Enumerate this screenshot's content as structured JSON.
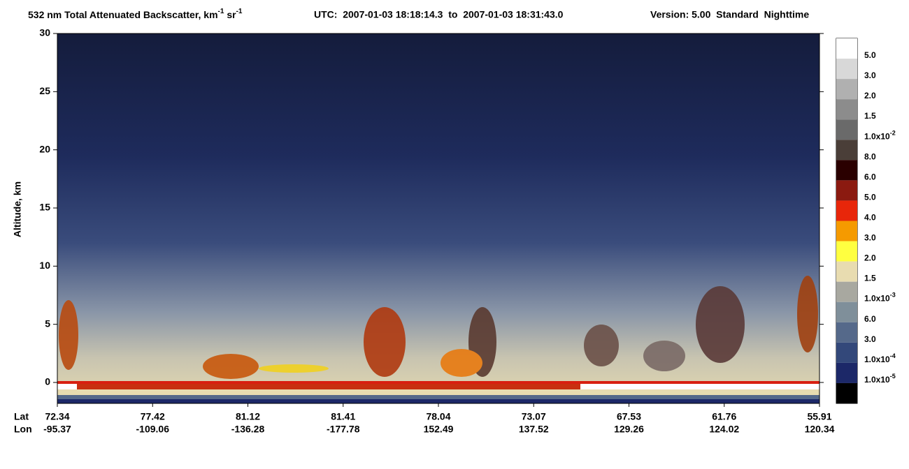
{
  "chart_data": {
    "type": "heatmap",
    "title": [
      "532 nm Total Attenuated Backscatter, km",
      "-1",
      " sr",
      "-1"
    ],
    "time_range": "UTC:  2007-01-03 18:18:14.3  to  2007-01-03 18:31:43.0",
    "version": "Version: 5.00  Standard  Nighttime",
    "ylabel": "Altitude, km",
    "ylim": [
      -1.8,
      30
    ],
    "yticks": [
      0,
      5,
      10,
      15,
      20,
      25,
      30
    ],
    "x_rows": [
      "Lat",
      "Lon"
    ],
    "lat": [
      72.34,
      77.42,
      81.12,
      81.41,
      78.04,
      73.07,
      67.53,
      61.76,
      55.91
    ],
    "lon": [
      -95.37,
      -109.06,
      -136.28,
      -177.78,
      152.49,
      137.52,
      129.26,
      124.02,
      120.34
    ],
    "colorbar": {
      "colors": [
        "#ffffff",
        "#d8d8d8",
        "#b0b0b0",
        "#8c8c8c",
        "#6a6a6a",
        "#4a3e38",
        "#2a0000",
        "#8b1a10",
        "#e8260a",
        "#f59a00",
        "#ffff40",
        "#e8dcb0",
        "#a8a8a0",
        "#7f8f9a",
        "#55698a",
        "#33487a",
        "#1c2868",
        "#000000"
      ],
      "labels": [
        {
          "text": "5.0"
        },
        {
          "text": "3.0"
        },
        {
          "text": "2.0"
        },
        {
          "text": "1.5"
        },
        {
          "text": "1.0x10",
          "sup": "-2"
        },
        {
          "text": "8.0"
        },
        {
          "text": "6.0"
        },
        {
          "text": "5.0"
        },
        {
          "text": "4.0"
        },
        {
          "text": "3.0"
        },
        {
          "text": "2.0"
        },
        {
          "text": "1.5"
        },
        {
          "text": "1.0x10",
          "sup": "-3"
        },
        {
          "text": "6.0"
        },
        {
          "text": "3.0"
        },
        {
          "text": "1.0x10",
          "sup": "-4"
        },
        {
          "text": "1.0x10",
          "sup": "-5"
        }
      ]
    }
  }
}
